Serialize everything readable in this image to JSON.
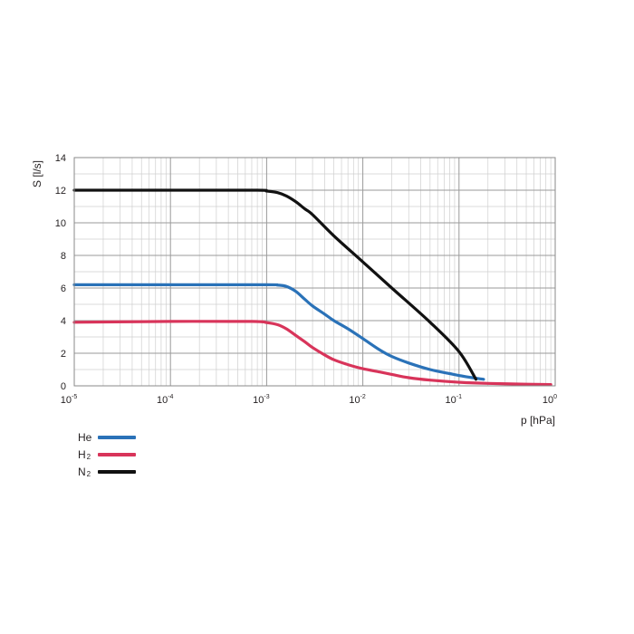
{
  "chart_data": {
    "type": "line",
    "xscale": "log",
    "xlim": [
      1e-05,
      1
    ],
    "ylim": [
      0,
      14
    ],
    "xlabel": "p [hPa]",
    "ylabel": "S [l/s]",
    "xtick_labels": [
      {
        "base": "10",
        "exp": "-5"
      },
      {
        "base": "10",
        "exp": "-4"
      },
      {
        "base": "10",
        "exp": "-3"
      },
      {
        "base": "10",
        "exp": "-2"
      },
      {
        "base": "10",
        "exp": "-1"
      },
      {
        "base": "10",
        "exp": "0"
      }
    ],
    "yticks": [
      0,
      2,
      4,
      6,
      8,
      10,
      12,
      14
    ],
    "grid": true,
    "legend_position": "bottom-left",
    "series": [
      {
        "name": "He",
        "name_main": "He",
        "name_sub": "",
        "color": "#2a72b8",
        "x": [
          1e-05,
          0.0001,
          0.001,
          0.0013,
          0.0016,
          0.002,
          0.0025,
          0.003,
          0.004,
          0.005,
          0.007,
          0.01,
          0.015,
          0.02,
          0.03,
          0.05,
          0.08,
          0.12,
          0.18
        ],
        "y": [
          6.2,
          6.2,
          6.2,
          6.18,
          6.1,
          5.8,
          5.3,
          4.9,
          4.4,
          4.0,
          3.5,
          2.9,
          2.2,
          1.8,
          1.4,
          1.0,
          0.75,
          0.55,
          0.4
        ]
      },
      {
        "name": "H2",
        "name_main": "H",
        "name_sub": "2",
        "color": "#d8345a",
        "x": [
          1e-05,
          0.0001,
          0.0007,
          0.001,
          0.0013,
          0.0016,
          0.002,
          0.0025,
          0.003,
          0.004,
          0.005,
          0.007,
          0.01,
          0.015,
          0.02,
          0.03,
          0.05,
          0.1,
          0.2,
          0.5,
          0.9
        ],
        "y": [
          3.9,
          3.95,
          3.95,
          3.88,
          3.75,
          3.5,
          3.1,
          2.7,
          2.35,
          1.9,
          1.6,
          1.3,
          1.05,
          0.85,
          0.7,
          0.5,
          0.35,
          0.22,
          0.15,
          0.1,
          0.08
        ]
      },
      {
        "name": "N2",
        "name_main": "N",
        "name_sub": "2",
        "color": "#111111",
        "x": [
          1e-05,
          0.0001,
          0.0008,
          0.001,
          0.0013,
          0.0016,
          0.002,
          0.0025,
          0.003,
          0.005,
          0.01,
          0.02,
          0.05,
          0.1,
          0.15
        ],
        "y": [
          12.0,
          12.0,
          12.0,
          11.95,
          11.85,
          11.65,
          11.3,
          10.85,
          10.5,
          9.2,
          7.6,
          6.0,
          3.9,
          2.1,
          0.4
        ]
      }
    ]
  }
}
